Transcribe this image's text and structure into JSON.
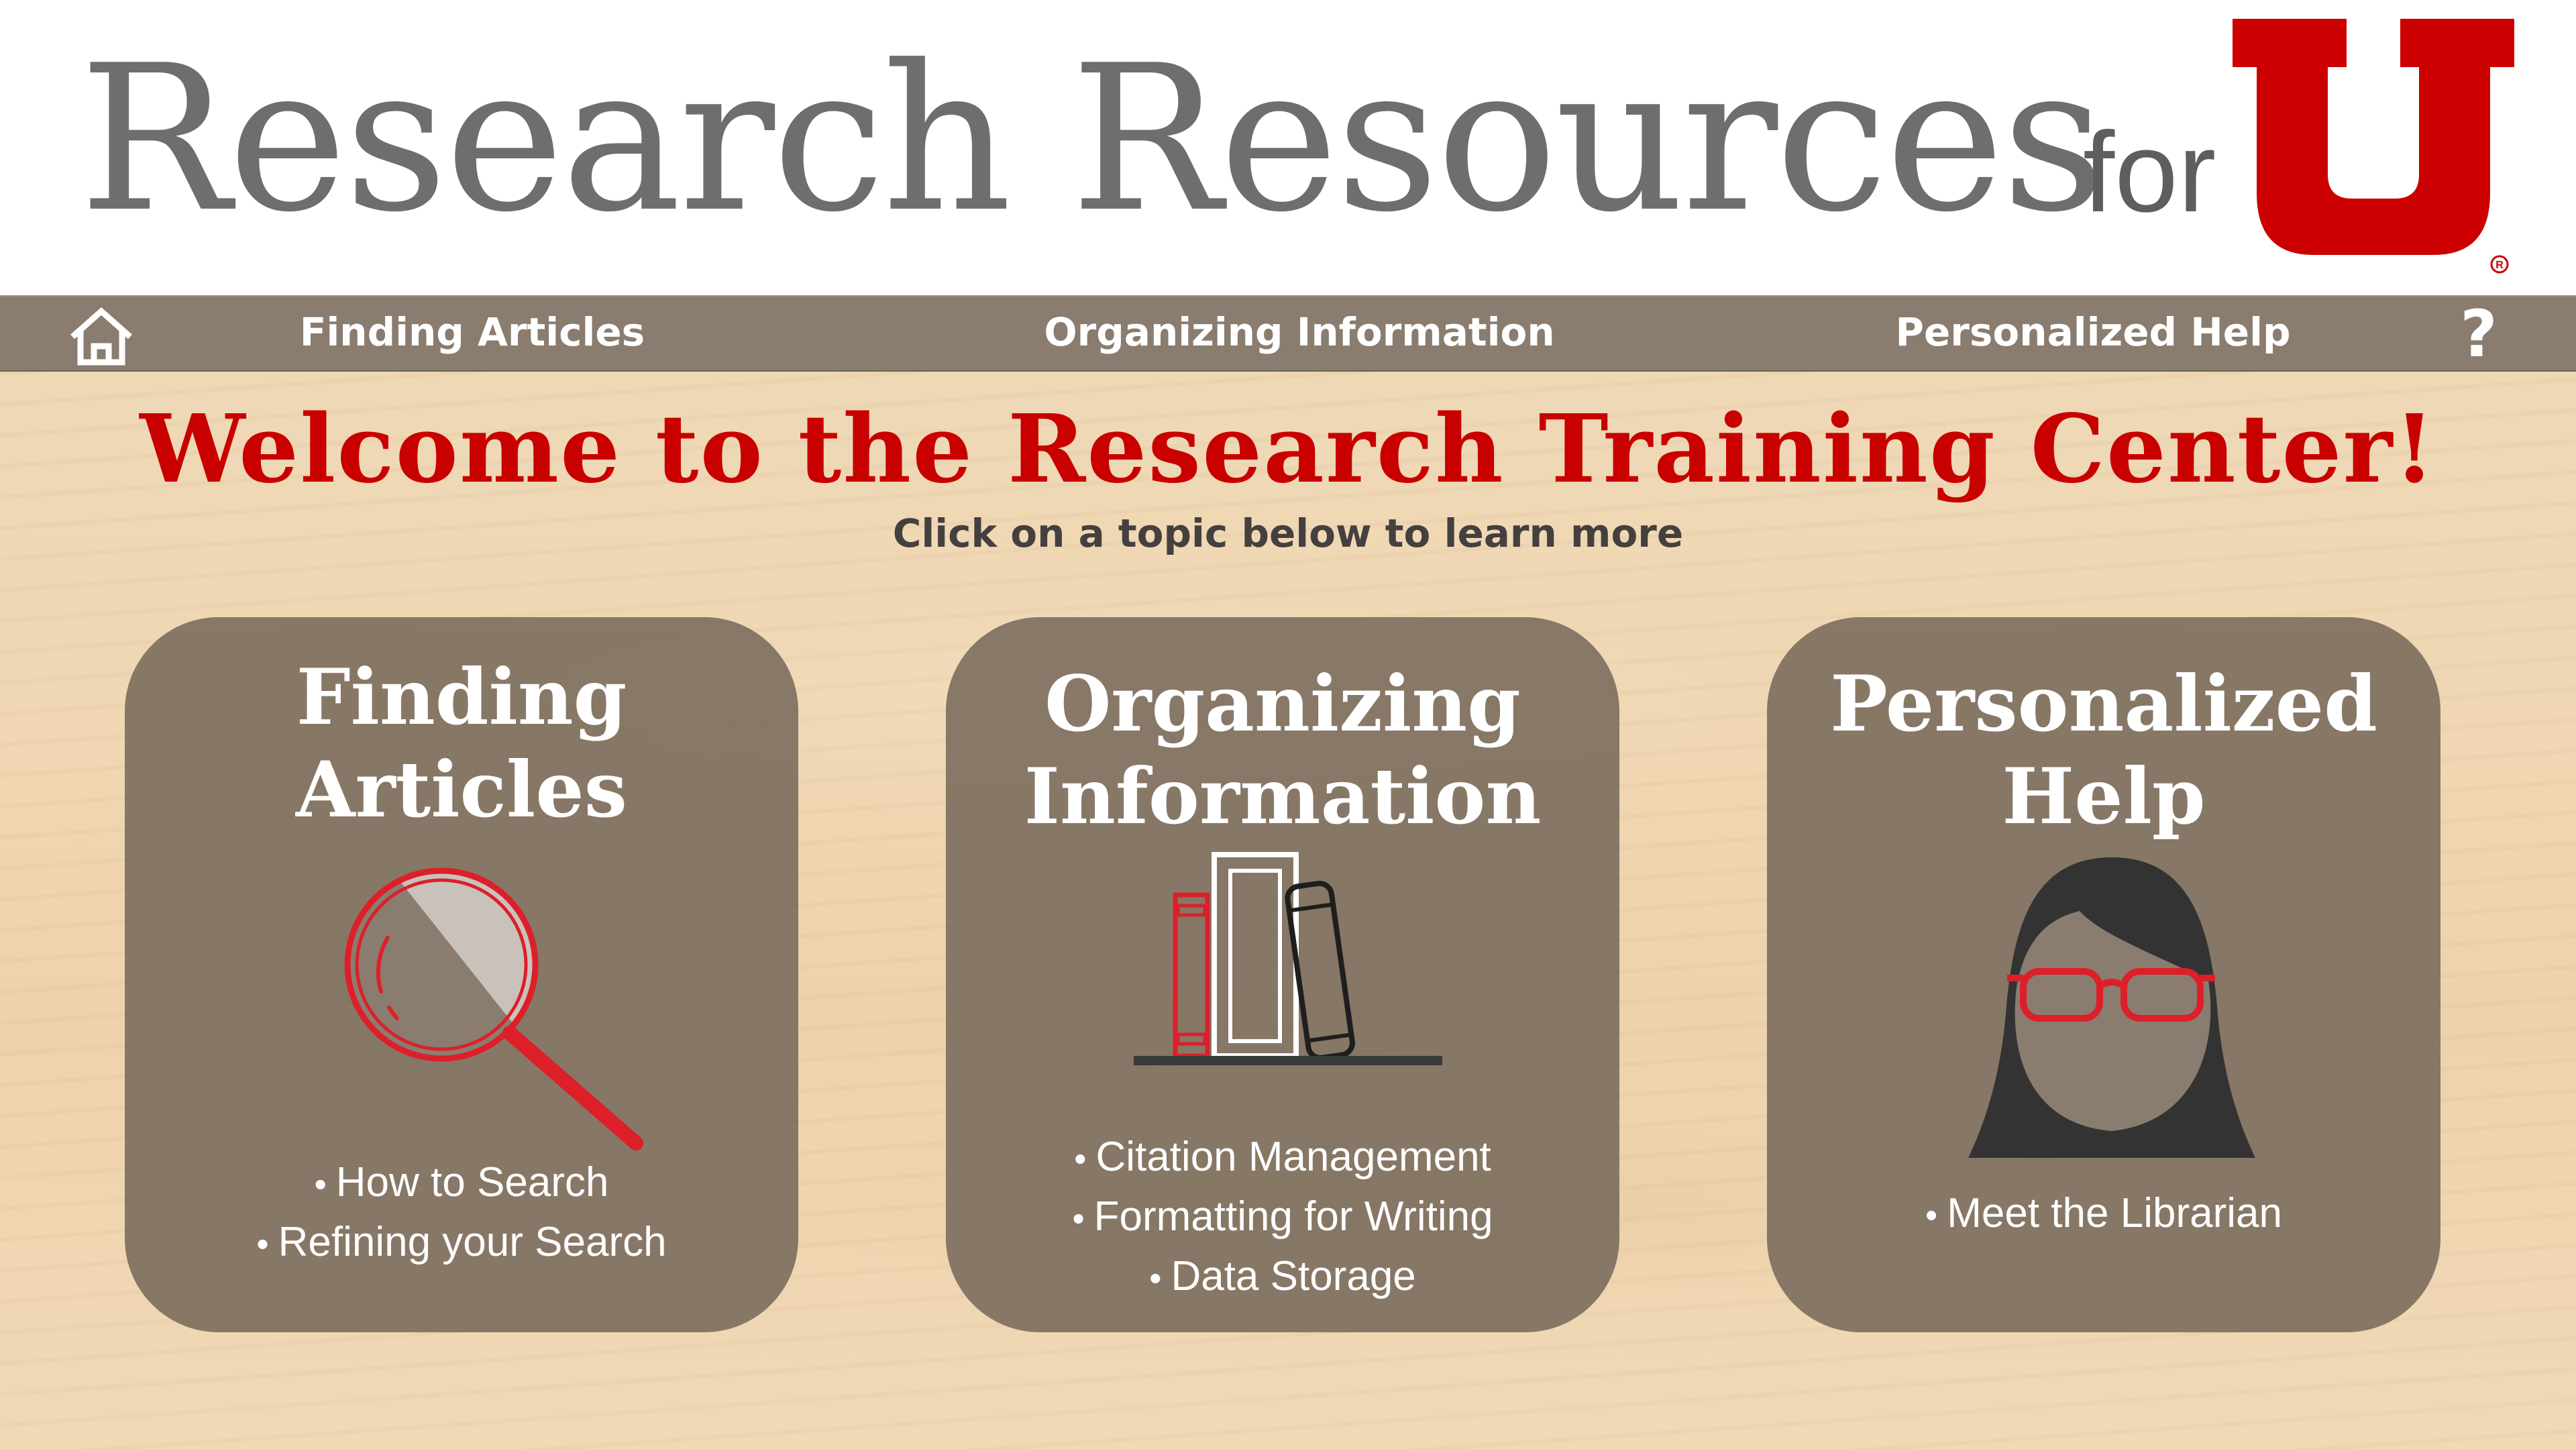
{
  "header": {
    "title": "Research Resources",
    "for_text": "for",
    "logo_icon": "university-of-utah-u-logo",
    "brand_color": "#cc0000"
  },
  "nav": {
    "home_icon": "home-icon",
    "items": [
      {
        "label": "Finding Articles"
      },
      {
        "label": "Organizing Information"
      },
      {
        "label": "Personalized Help"
      }
    ],
    "help_label": "?"
  },
  "main": {
    "welcome": "Welcome to the Research Training Center!",
    "subtitle": "Click on a topic below to learn more"
  },
  "cards": [
    {
      "title_line1": "Finding",
      "title_line2": "Articles",
      "icon": "magnifying-glass-icon",
      "items": [
        {
          "label": "How to Search"
        },
        {
          "label": "Refining your Search"
        }
      ]
    },
    {
      "title_line1": "Organizing",
      "title_line2": "Information",
      "icon": "books-icon",
      "items": [
        {
          "label": "Citation Management"
        },
        {
          "label": "Formatting for Writing"
        },
        {
          "label": "Data Storage"
        }
      ]
    },
    {
      "title_line1": "Personalized",
      "title_line2": "Help",
      "icon": "librarian-icon",
      "items": [
        {
          "label": "Meet the Librarian"
        }
      ]
    }
  ]
}
